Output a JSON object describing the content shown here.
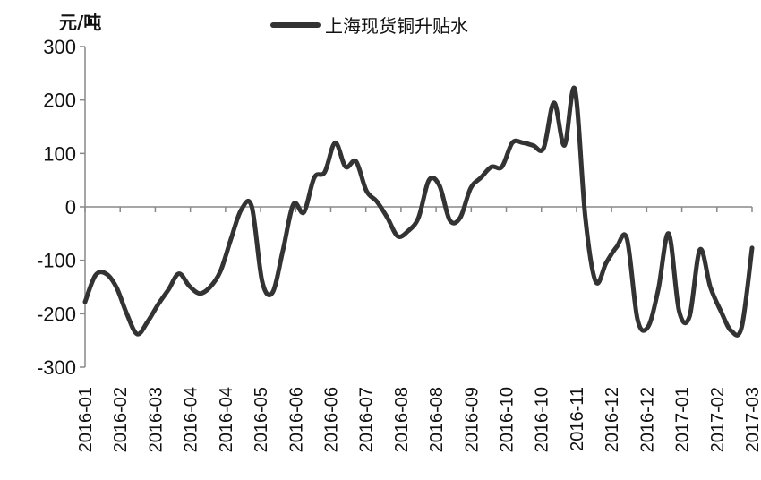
{
  "chart_data": {
    "type": "line",
    "unit_label": "元/吨",
    "ylim": [
      -300,
      300
    ],
    "y_ticks": [
      300,
      200,
      100,
      0,
      -100,
      -200,
      -300
    ],
    "x_tick_labels": [
      "2016-01",
      "2016-02",
      "2016-03",
      "2016-04",
      "2016-04",
      "2016-05",
      "2016-06",
      "2016-06",
      "2016-07",
      "2016-08",
      "2016-08",
      "2016-09",
      "2016-10",
      "2016-10",
      "2016-11",
      "2016-12",
      "2016-12",
      "2017-01",
      "2017-02",
      "2017-03"
    ],
    "legend_position": "top-center",
    "grid": false,
    "series": [
      {
        "name": "上海现货铜升贴水",
        "color": "#333333",
        "values": [
          -178,
          -128,
          -125,
          -150,
          -200,
          -238,
          -215,
          -183,
          -155,
          -125,
          -148,
          -162,
          -150,
          -120,
          -60,
          -5,
          0,
          -140,
          -160,
          -80,
          5,
          -10,
          55,
          65,
          120,
          75,
          85,
          30,
          10,
          -20,
          -55,
          -45,
          -20,
          50,
          40,
          -25,
          -20,
          35,
          55,
          75,
          75,
          120,
          120,
          115,
          110,
          195,
          115,
          220,
          -20,
          -140,
          -105,
          -75,
          -60,
          -210,
          -225,
          -155,
          -50,
          -195,
          -205,
          -80,
          -150,
          -195,
          -232,
          -225,
          -77
        ]
      }
    ]
  }
}
